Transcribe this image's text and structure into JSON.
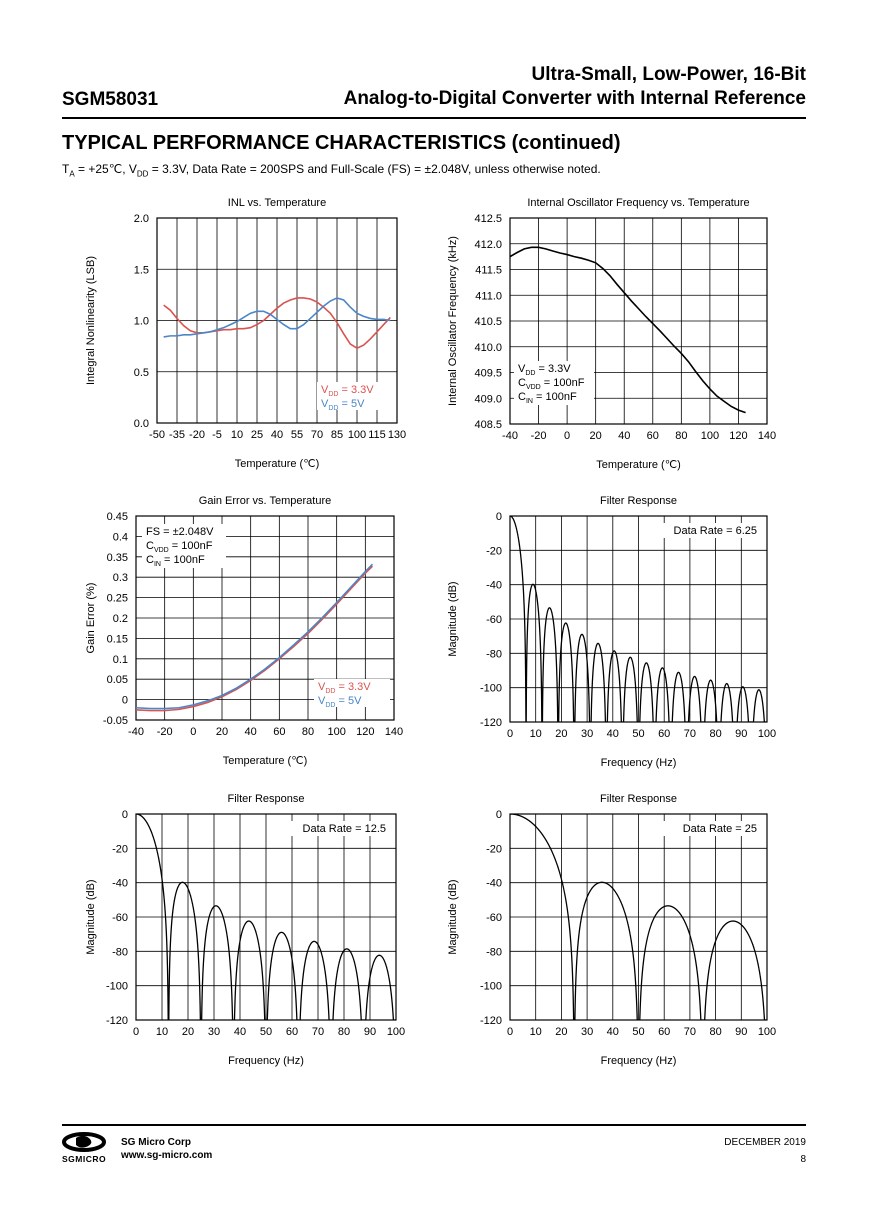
{
  "header": {
    "part_number": "SGM58031",
    "title_line1": "Ultra-Small, Low-Power, 16-Bit",
    "title_line2": "Analog-to-Digital Converter with Internal Reference"
  },
  "section": {
    "title": "TYPICAL PERFORMANCE CHARACTERISTICS (continued)",
    "conditions": {
      "t": "T",
      "t_sub": "A",
      "mid": " = +25℃, V",
      "v_sub": "DD",
      "rest": " = 3.3V, Data Rate = 200SPS and Full-Scale (FS) = ±2.048V, unless otherwise noted."
    }
  },
  "chart_data": [
    {
      "type": "line",
      "title": "INL vs. Temperature",
      "xlabel": "Temperature (℃)",
      "ylabel": "Integral Nonlinearity (LSB)",
      "xlim": [
        -50,
        130
      ],
      "ylim": [
        0,
        2
      ],
      "x_ticks": [
        -50,
        -35,
        -20,
        -5,
        10,
        25,
        40,
        55,
        70,
        85,
        100,
        115,
        130
      ],
      "y_ticks": [
        0,
        0.5,
        1,
        1.5,
        2
      ],
      "y_tick_labels": [
        "0.0",
        "0.5",
        "1.0",
        "1.5",
        "2.0"
      ],
      "grid": true,
      "legend_position": "bottom-right",
      "series": [
        {
          "name": "V_DD = 3.3V",
          "color": "#d9534f",
          "x": [
            -45,
            -40,
            -35,
            -30,
            -25,
            -20,
            -15,
            -10,
            -5,
            0,
            5,
            10,
            15,
            20,
            25,
            30,
            35,
            40,
            45,
            50,
            55,
            60,
            65,
            70,
            75,
            80,
            85,
            90,
            95,
            100,
            105,
            110,
            115,
            120,
            125
          ],
          "y": [
            1.15,
            1.1,
            1.02,
            0.95,
            0.9,
            0.88,
            0.88,
            0.89,
            0.9,
            0.91,
            0.91,
            0.92,
            0.92,
            0.93,
            0.96,
            1.0,
            1.06,
            1.12,
            1.17,
            1.2,
            1.22,
            1.22,
            1.21,
            1.18,
            1.13,
            1.07,
            0.98,
            0.87,
            0.77,
            0.73,
            0.76,
            0.82,
            0.89,
            0.96,
            1.03
          ]
        },
        {
          "name": "V_DD = 5V",
          "color": "#4a86c8",
          "x": [
            -45,
            -40,
            -35,
            -30,
            -25,
            -20,
            -15,
            -10,
            -5,
            0,
            5,
            10,
            15,
            20,
            25,
            30,
            35,
            40,
            45,
            50,
            55,
            60,
            65,
            70,
            75,
            80,
            85,
            90,
            95,
            100,
            105,
            110,
            115,
            120,
            125
          ],
          "y": [
            0.84,
            0.85,
            0.85,
            0.86,
            0.86,
            0.87,
            0.88,
            0.89,
            0.91,
            0.93,
            0.96,
            0.99,
            1.03,
            1.07,
            1.09,
            1.09,
            1.06,
            1.01,
            0.96,
            0.92,
            0.92,
            0.96,
            1.02,
            1.08,
            1.14,
            1.19,
            1.22,
            1.2,
            1.13,
            1.07,
            1.04,
            1.02,
            1.01,
            1.01,
            1.0
          ]
        }
      ]
    },
    {
      "type": "line",
      "title": "Internal Oscillator Frequency vs. Temperature",
      "xlabel": "Temperature (℃)",
      "ylabel": "Internal Oscillator Frequency (kHz)",
      "xlim": [
        -40,
        140
      ],
      "ylim": [
        408.5,
        412.5
      ],
      "x_ticks": [
        -40,
        -20,
        0,
        20,
        40,
        60,
        80,
        100,
        120,
        140
      ],
      "y_ticks": [
        408.5,
        409,
        409.5,
        410,
        410.5,
        411,
        411.5,
        412,
        412.5
      ],
      "y_tick_labels": [
        "408.5",
        "409.0",
        "409.5",
        "410.0",
        "410.5",
        "411.0",
        "411.5",
        "412.0",
        "412.5"
      ],
      "grid": true,
      "series": [
        {
          "color": "#000000",
          "x": [
            -40,
            -35,
            -30,
            -25,
            -20,
            -15,
            -10,
            -5,
            0,
            5,
            10,
            15,
            20,
            25,
            30,
            35,
            40,
            45,
            50,
            55,
            60,
            65,
            70,
            75,
            80,
            85,
            90,
            95,
            100,
            105,
            110,
            115,
            120,
            125
          ],
          "y": [
            411.75,
            411.83,
            411.9,
            411.93,
            411.93,
            411.9,
            411.86,
            411.82,
            411.79,
            411.75,
            411.72,
            411.68,
            411.63,
            411.52,
            411.38,
            411.21,
            411.05,
            410.89,
            410.74,
            410.59,
            410.45,
            410.31,
            410.16,
            410.01,
            409.87,
            409.71,
            409.52,
            409.34,
            409.18,
            409.04,
            408.94,
            408.84,
            408.77,
            408.72
          ]
        }
      ],
      "annotations": {
        "line1_a": "V",
        "line1_sub": "DD",
        "line1_b": " = 3.3V",
        "line2_a": "C",
        "line2_sub": "VDD",
        "line2_b": " = 100nF",
        "line3_a": "C",
        "line3_sub": "IN",
        "line3_b": " = 100nF"
      }
    },
    {
      "type": "line",
      "title": "Gain Error vs. Temperature",
      "xlabel": "Temperature (℃)",
      "ylabel": "Gain Error (%)",
      "xlim": [
        -40,
        140
      ],
      "ylim": [
        -0.05,
        0.45
      ],
      "x_ticks": [
        -40,
        -20,
        0,
        20,
        40,
        60,
        80,
        100,
        120,
        140
      ],
      "y_ticks": [
        -0.05,
        0,
        0.05,
        0.1,
        0.15,
        0.2,
        0.25,
        0.3,
        0.35,
        0.4,
        0.45
      ],
      "y_tick_labels": [
        "-0.05",
        "0",
        "0.05",
        "0.1",
        "0.15",
        "0.2",
        "0.25",
        "0.3",
        "0.35",
        "0.4",
        "0.45"
      ],
      "grid": true,
      "legend_position": "bottom-right",
      "series": [
        {
          "name": "V_DD = 3.3V",
          "color": "#d9534f",
          "x": [
            -40,
            -30,
            -20,
            -10,
            0,
            10,
            20,
            30,
            40,
            50,
            60,
            70,
            80,
            90,
            100,
            110,
            120,
            125
          ],
          "y": [
            -0.025,
            -0.027,
            -0.027,
            -0.024,
            -0.017,
            -0.007,
            0.007,
            0.025,
            0.047,
            0.072,
            0.1,
            0.13,
            0.162,
            0.197,
            0.234,
            0.272,
            0.31,
            0.327
          ]
        },
        {
          "name": "V_DD = 5V",
          "color": "#4a86c8",
          "x": [
            -40,
            -30,
            -20,
            -10,
            0,
            10,
            20,
            30,
            40,
            50,
            60,
            70,
            80,
            90,
            100,
            110,
            120,
            125
          ],
          "y": [
            -0.02,
            -0.022,
            -0.022,
            -0.02,
            -0.013,
            -0.003,
            0.01,
            0.028,
            0.05,
            0.075,
            0.103,
            0.134,
            0.166,
            0.201,
            0.238,
            0.276,
            0.314,
            0.332
          ]
        }
      ],
      "annotations": {
        "line1": "FS = ±2.048V",
        "line2_a": "C",
        "line2_sub": "VDD",
        "line2_b": " = 100nF",
        "line3_a": "C",
        "line3_sub": "IN",
        "line3_b": " = 100nF"
      }
    },
    {
      "type": "line",
      "title": "Filter Response",
      "xlabel": "Frequency (Hz)",
      "ylabel": "Magnitude (dB)",
      "xlim": [
        0,
        100
      ],
      "ylim": [
        -120,
        0
      ],
      "x_ticks": [
        0,
        10,
        20,
        30,
        40,
        50,
        60,
        70,
        80,
        90,
        100
      ],
      "y_ticks": [
        0,
        -20,
        -40,
        -60,
        -80,
        -100,
        -120
      ],
      "grid": true,
      "data_rate": 6.25,
      "annotation": "Data Rate = 6.25",
      "series": [
        {
          "color": "#000000",
          "description": "sinc3 response, nulls at multiples of 6.25 Hz"
        }
      ]
    },
    {
      "type": "line",
      "title": "Filter Response",
      "xlabel": "Frequency (Hz)",
      "ylabel": "Magnitude (dB)",
      "xlim": [
        0,
        100
      ],
      "ylim": [
        -120,
        0
      ],
      "x_ticks": [
        0,
        10,
        20,
        30,
        40,
        50,
        60,
        70,
        80,
        90,
        100
      ],
      "y_ticks": [
        0,
        -20,
        -40,
        -60,
        -80,
        -100,
        -120
      ],
      "grid": true,
      "data_rate": 12.5,
      "annotation": "Data Rate = 12.5",
      "series": [
        {
          "color": "#000000",
          "description": "sinc3 response, nulls at multiples of 12.5 Hz"
        }
      ]
    },
    {
      "type": "line",
      "title": "Filter Response",
      "xlabel": "Frequency (Hz)",
      "ylabel": "Magnitude (dB)",
      "xlim": [
        0,
        100
      ],
      "ylim": [
        -120,
        0
      ],
      "x_ticks": [
        0,
        10,
        20,
        30,
        40,
        50,
        60,
        70,
        80,
        90,
        100
      ],
      "y_ticks": [
        0,
        -20,
        -40,
        -60,
        -80,
        -100,
        -120
      ],
      "grid": true,
      "data_rate": 25,
      "annotation": "Data Rate = 25",
      "series": [
        {
          "color": "#000000",
          "description": "sinc3 response, nulls at multiples of 25 Hz"
        }
      ]
    }
  ],
  "footer": {
    "logo_text": "SGMICRO",
    "company": "SG Micro Corp",
    "website": "www.sg-micro.com",
    "date": "DECEMBER  2019",
    "page": "8"
  }
}
